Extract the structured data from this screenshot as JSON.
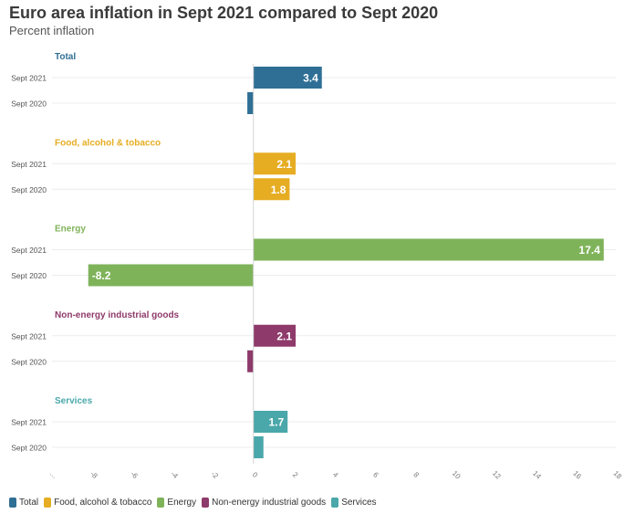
{
  "chart_data": {
    "type": "bar",
    "orientation": "horizontal",
    "title": "Euro area inflation in Sept 2021 compared to Sept 2020",
    "subtitle": "Percent inflation",
    "row_labels": [
      "Sept 2021",
      "Sept 2020"
    ],
    "xlim": [
      -10,
      18
    ],
    "xticks": [
      "-10",
      "-8",
      "-6",
      "-4",
      "-2",
      "0",
      "2",
      "4",
      "6",
      "8",
      "10",
      "12",
      "14",
      "16",
      "18"
    ],
    "grid": true,
    "legend_position": "bottom-left",
    "groups": [
      {
        "name": "Total",
        "color": "#2f6f95",
        "values": [
          3.4,
          -0.3
        ],
        "labels": [
          "3.4",
          ""
        ]
      },
      {
        "name": "Food, alcohol & tobacco",
        "color": "#e6ad23",
        "values": [
          2.1,
          1.8
        ],
        "labels": [
          "2.1",
          "1.8"
        ]
      },
      {
        "name": "Energy",
        "color": "#7fb35a",
        "values": [
          17.4,
          -8.2
        ],
        "labels": [
          "17.4",
          "-8.2"
        ]
      },
      {
        "name": "Non-energy industrial goods",
        "color": "#8e3a6a",
        "values": [
          2.1,
          -0.3
        ],
        "labels": [
          "2.1",
          ""
        ]
      },
      {
        "name": "Services",
        "color": "#4aa7aa",
        "values": [
          1.7,
          0.5
        ],
        "labels": [
          "1.7",
          ""
        ]
      }
    ]
  }
}
